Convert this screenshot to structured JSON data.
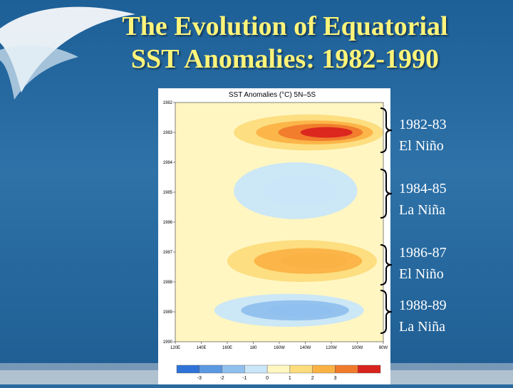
{
  "slide": {
    "title_line1": "The Evolution of Equatorial",
    "title_line2": "SST Anomalies: 1982-1990",
    "colors": {
      "background": "#2a6a9f",
      "title": "#fff47a",
      "annotation_text": "#ffffff"
    }
  },
  "annotations": [
    {
      "period": "1982-83",
      "event": "El Niño"
    },
    {
      "period": "1984-85",
      "event": "La Niña"
    },
    {
      "period": "1986-87",
      "event": "El Niño"
    },
    {
      "period": "1988-89",
      "event": "La Niña"
    }
  ],
  "chart_data": {
    "type": "heatmap",
    "title": "SST Anomalies (°C) 5N–5S",
    "x_ticks": [
      "120E",
      "140E",
      "160E",
      "180",
      "160W",
      "140W",
      "120W",
      "100W",
      "80W"
    ],
    "y_ticks": [
      "1982",
      "1983",
      "1984",
      "1985",
      "1986",
      "1987",
      "1988",
      "1989",
      "1990"
    ],
    "colorbar_ticks": [
      "-3",
      "-2",
      "-1",
      "0",
      "1",
      "2",
      "3"
    ],
    "colorbar_colors": [
      "#2f73d8",
      "#5b98e2",
      "#8fc0ee",
      "#c9e6f8",
      "#fff6c2",
      "#fddc7c",
      "#fbb244",
      "#f07a2c",
      "#d9231d"
    ],
    "features": [
      {
        "label": "1982-83 El Niño",
        "start_year": 1982.4,
        "end_year": 1983.6,
        "lon_from": 165,
        "lon_to": 280,
        "peak_anomaly": 3.5
      },
      {
        "label": "1984-85 La Niña",
        "start_year": 1984.0,
        "end_year": 1985.9,
        "lon_from": 165,
        "lon_to": 260,
        "peak_anomaly": -1.5
      },
      {
        "label": "1986-87 El Niño",
        "start_year": 1986.6,
        "end_year": 1988.0,
        "lon_from": 160,
        "lon_to": 275,
        "peak_anomaly": 2.3
      },
      {
        "label": "1988-89 La Niña",
        "start_year": 1988.4,
        "end_year": 1989.5,
        "lon_from": 150,
        "lon_to": 265,
        "peak_anomaly": -2.3
      }
    ]
  }
}
